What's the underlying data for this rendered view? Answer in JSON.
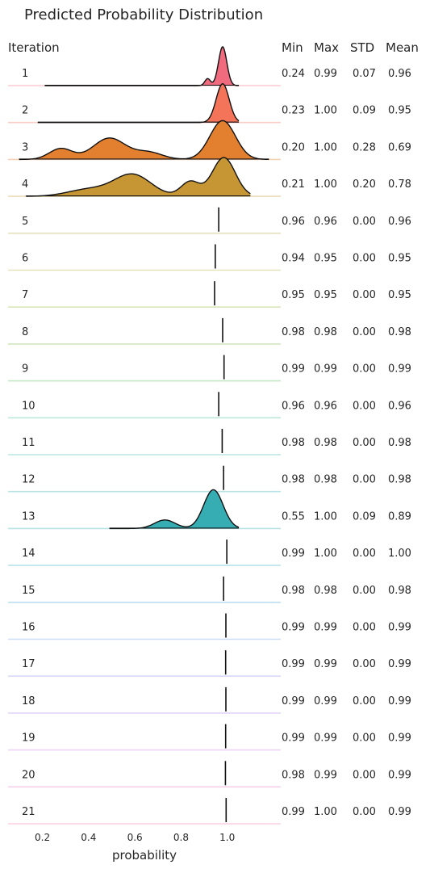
{
  "chart_data": {
    "type": "ridgeline",
    "title": "Predicted Probability Distribution",
    "row_header": "Iteration",
    "stat_headers": [
      "Min",
      "Max",
      "STD",
      "Mean"
    ],
    "xlabel": "probability",
    "xticks": [
      "0.2",
      "0.4",
      "0.6",
      "0.8",
      "1.0"
    ],
    "xlim": [
      0.05,
      1.23
    ],
    "rows": [
      {
        "label": "1",
        "min": "0.24",
        "max": "0.99",
        "std": "0.07",
        "mean": "0.96",
        "color": "#f16b7f",
        "kind": "density",
        "x0": 0.21,
        "x1": 1.05,
        "peaks": [
          [
            0.98,
            0.018,
            1.0
          ],
          [
            0.915,
            0.012,
            0.18
          ]
        ]
      },
      {
        "label": "2",
        "min": "0.23",
        "max": "1.00",
        "std": "0.09",
        "mean": "0.95",
        "color": "#f4745a",
        "kind": "density",
        "x0": 0.18,
        "x1": 1.05,
        "peaks": [
          [
            0.98,
            0.028,
            1.0
          ]
        ]
      },
      {
        "label": "3",
        "min": "0.20",
        "max": "1.00",
        "std": "0.28",
        "mean": "0.69",
        "color": "#e2802f",
        "kind": "density",
        "x0": 0.1,
        "x1": 1.18,
        "peaks": [
          [
            0.98,
            0.055,
            1.0
          ],
          [
            0.49,
            0.07,
            0.55
          ],
          [
            0.28,
            0.05,
            0.28
          ],
          [
            0.66,
            0.06,
            0.18
          ]
        ]
      },
      {
        "label": "4",
        "min": "0.21",
        "max": "1.00",
        "std": "0.20",
        "mean": "0.78",
        "color": "#c69634",
        "kind": "density",
        "x0": 0.13,
        "x1": 1.1,
        "peaks": [
          [
            0.985,
            0.05,
            1.0
          ],
          [
            0.84,
            0.04,
            0.38
          ],
          [
            0.59,
            0.08,
            0.56
          ],
          [
            0.4,
            0.09,
            0.18
          ]
        ]
      },
      {
        "label": "5",
        "min": "0.96",
        "max": "0.96",
        "std": "0.00",
        "mean": "0.96",
        "color": "#b5a845",
        "kind": "spike",
        "spike": 0.963
      },
      {
        "label": "6",
        "min": "0.94",
        "max": "0.95",
        "std": "0.00",
        "mean": "0.95",
        "color": "#a6b03c",
        "kind": "spike",
        "spike": 0.948
      },
      {
        "label": "7",
        "min": "0.95",
        "max": "0.95",
        "std": "0.00",
        "mean": "0.95",
        "color": "#93b63c",
        "kind": "spike",
        "spike": 0.945
      },
      {
        "label": "8",
        "min": "0.98",
        "max": "0.98",
        "std": "0.00",
        "mean": "0.98",
        "color": "#77bb47",
        "kind": "spike",
        "spike": 0.98
      },
      {
        "label": "9",
        "min": "0.99",
        "max": "0.99",
        "std": "0.00",
        "mean": "0.99",
        "color": "#4fbd5e",
        "kind": "spike",
        "spike": 0.986
      },
      {
        "label": "10",
        "min": "0.96",
        "max": "0.96",
        "std": "0.00",
        "mean": "0.96",
        "color": "#3fb995",
        "kind": "spike",
        "spike": 0.963
      },
      {
        "label": "11",
        "min": "0.98",
        "max": "0.98",
        "std": "0.00",
        "mean": "0.98",
        "color": "#3cb6ad",
        "kind": "spike",
        "spike": 0.978
      },
      {
        "label": "12",
        "min": "0.98",
        "max": "0.98",
        "std": "0.00",
        "mean": "0.98",
        "color": "#3db3b5",
        "kind": "spike",
        "spike": 0.984
      },
      {
        "label": "13",
        "min": "0.55",
        "max": "1.00",
        "std": "0.09",
        "mean": "0.89",
        "color": "#36acb3",
        "kind": "density",
        "x0": 0.49,
        "x1": 1.05,
        "peaks": [
          [
            0.94,
            0.042,
            1.0
          ],
          [
            0.73,
            0.045,
            0.22
          ]
        ]
      },
      {
        "label": "14",
        "min": "0.99",
        "max": "1.00",
        "std": "0.00",
        "mean": "1.00",
        "color": "#3aaac4",
        "kind": "spike",
        "spike": 0.998
      },
      {
        "label": "15",
        "min": "0.98",
        "max": "0.98",
        "std": "0.00",
        "mean": "0.98",
        "color": "#44a3d4",
        "kind": "spike",
        "spike": 0.984
      },
      {
        "label": "16",
        "min": "0.99",
        "max": "0.99",
        "std": "0.00",
        "mean": "0.99",
        "color": "#6d9be6",
        "kind": "spike",
        "spike": 0.994
      },
      {
        "label": "17",
        "min": "0.99",
        "max": "0.99",
        "std": "0.00",
        "mean": "0.99",
        "color": "#8e93ea",
        "kind": "spike",
        "spike": 0.993
      },
      {
        "label": "18",
        "min": "0.99",
        "max": "0.99",
        "std": "0.00",
        "mean": "0.99",
        "color": "#b18ae8",
        "kind": "spike",
        "spike": 0.994
      },
      {
        "label": "19",
        "min": "0.99",
        "max": "0.99",
        "std": "0.00",
        "mean": "0.99",
        "color": "#d280e0",
        "kind": "spike",
        "spike": 0.993
      },
      {
        "label": "20",
        "min": "0.98",
        "max": "0.99",
        "std": "0.00",
        "mean": "0.99",
        "color": "#e77bc9",
        "kind": "spike",
        "spike": 0.992
      },
      {
        "label": "21",
        "min": "0.99",
        "max": "1.00",
        "std": "0.00",
        "mean": "0.99",
        "color": "#f075ab",
        "kind": "spike",
        "spike": 0.995
      }
    ]
  }
}
